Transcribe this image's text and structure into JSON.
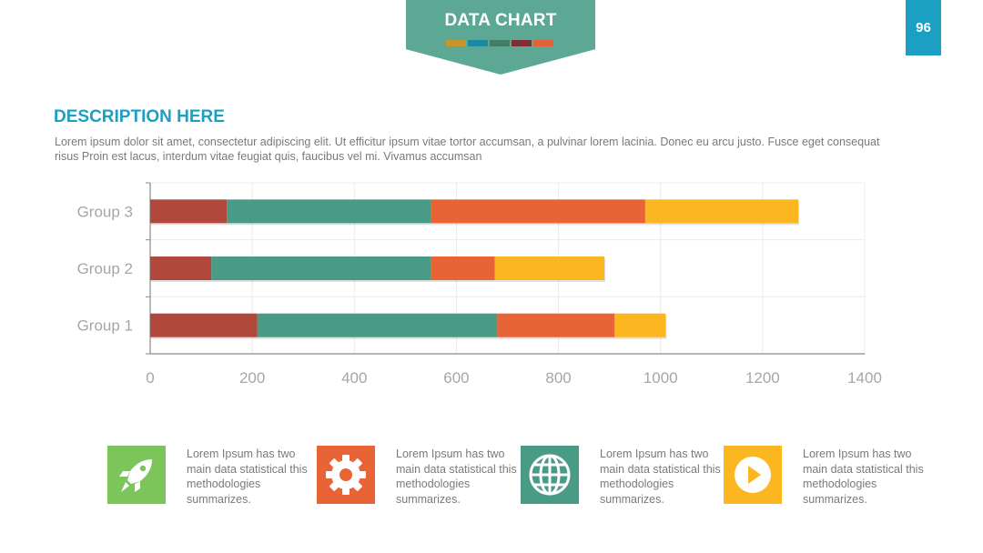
{
  "header": {
    "title": "DATA CHART",
    "swatch_colors": [
      "#c9952b",
      "#1b8aa0",
      "#3f7f6a",
      "#7f2f2f",
      "#e6603a"
    ],
    "page_number": "96"
  },
  "description": {
    "title": "DESCRIPTION HERE",
    "body": "Lorem ipsum dolor sit amet, consectetur adipiscing elit. Ut efficitur ipsum vitae tortor accumsan, a pulvinar lorem lacinia. Donec eu arcu justo. Fusce eget consequat risus Proin est lacus, interdum vitae feugiat quis, faucibus vel mi.  Vivamus accumsan"
  },
  "chart_data": {
    "type": "bar",
    "orientation": "horizontal",
    "stacked": true,
    "categories": [
      "Group 1",
      "Group 2",
      "Group 3"
    ],
    "series": [
      {
        "color": "#b0493c",
        "values": [
          210,
          120,
          150
        ]
      },
      {
        "color": "#4a9b86",
        "values": [
          470,
          430,
          400
        ]
      },
      {
        "color": "#e86437",
        "values": [
          230,
          125,
          420
        ]
      },
      {
        "color": "#fbb620",
        "values": [
          100,
          215,
          300
        ]
      }
    ],
    "xlim": [
      0,
      1400
    ],
    "xticks": [
      "0",
      "200",
      "400",
      "600",
      "800",
      "1000",
      "1200",
      "1400"
    ],
    "grid": true,
    "legend": "none"
  },
  "features": [
    {
      "icon": "rocket-icon",
      "color": "#7cc55b",
      "text": "Lorem Ipsum has two main data statistical this methodologies summarizes."
    },
    {
      "icon": "gear-icon",
      "color": "#e86437",
      "text": "Lorem Ipsum has two main data statistical this methodologies summarizes."
    },
    {
      "icon": "globe-icon",
      "color": "#4a9b86",
      "text": "Lorem Ipsum has two main data statistical this methodologies summarizes."
    },
    {
      "icon": "play-icon",
      "color": "#fbb620",
      "text": "Lorem Ipsum has two main data statistical this methodologies summarizes."
    }
  ]
}
